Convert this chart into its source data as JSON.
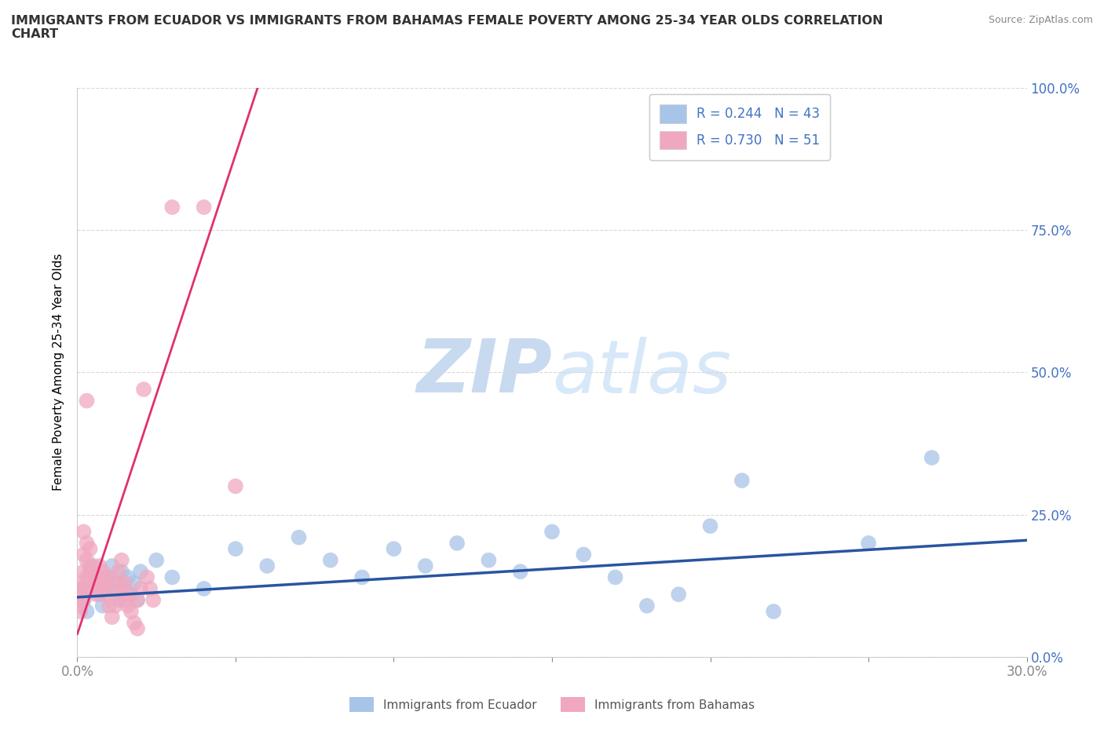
{
  "title": "IMMIGRANTS FROM ECUADOR VS IMMIGRANTS FROM BAHAMAS FEMALE POVERTY AMONG 25-34 YEAR OLDS CORRELATION\nCHART",
  "source": "Source: ZipAtlas.com",
  "ylabel": "Female Poverty Among 25-34 Year Olds",
  "xlim": [
    0.0,
    0.3
  ],
  "ylim": [
    0.0,
    1.0
  ],
  "xticks": [
    0.0,
    0.05,
    0.1,
    0.15,
    0.2,
    0.25,
    0.3
  ],
  "xtick_labels": [
    "0.0%",
    "",
    "",
    "",
    "",
    "",
    "30.0%"
  ],
  "ytick_labels": [
    "0.0%",
    "25.0%",
    "50.0%",
    "75.0%",
    "100.0%"
  ],
  "yticks": [
    0.0,
    0.25,
    0.5,
    0.75,
    1.0
  ],
  "ecuador_color": "#a8c4e8",
  "bahamas_color": "#f0a8c0",
  "ecuador_line_color": "#2855a0",
  "bahamas_line_color": "#e03070",
  "ecuador_R": 0.244,
  "ecuador_N": 43,
  "bahamas_R": 0.73,
  "bahamas_N": 51,
  "legend_color": "#4472c4",
  "watermark_zip": "ZIP",
  "watermark_atlas": "atlas",
  "watermark_color": "#c8daf0",
  "grid_color": "#d8d8d8",
  "ecuador_scatter": [
    [
      0.001,
      0.12
    ],
    [
      0.002,
      0.1
    ],
    [
      0.003,
      0.08
    ],
    [
      0.004,
      0.15
    ],
    [
      0.005,
      0.16
    ],
    [
      0.006,
      0.13
    ],
    [
      0.007,
      0.11
    ],
    [
      0.008,
      0.09
    ],
    [
      0.009,
      0.14
    ],
    [
      0.01,
      0.12
    ],
    [
      0.011,
      0.16
    ],
    [
      0.012,
      0.13
    ],
    [
      0.013,
      0.1
    ],
    [
      0.014,
      0.15
    ],
    [
      0.015,
      0.12
    ],
    [
      0.016,
      0.14
    ],
    [
      0.017,
      0.11
    ],
    [
      0.018,
      0.13
    ],
    [
      0.019,
      0.1
    ],
    [
      0.02,
      0.15
    ],
    [
      0.025,
      0.17
    ],
    [
      0.03,
      0.14
    ],
    [
      0.04,
      0.12
    ],
    [
      0.05,
      0.19
    ],
    [
      0.06,
      0.16
    ],
    [
      0.07,
      0.21
    ],
    [
      0.08,
      0.17
    ],
    [
      0.09,
      0.14
    ],
    [
      0.1,
      0.19
    ],
    [
      0.11,
      0.16
    ],
    [
      0.12,
      0.2
    ],
    [
      0.13,
      0.17
    ],
    [
      0.14,
      0.15
    ],
    [
      0.15,
      0.22
    ],
    [
      0.16,
      0.18
    ],
    [
      0.17,
      0.14
    ],
    [
      0.18,
      0.09
    ],
    [
      0.19,
      0.11
    ],
    [
      0.2,
      0.23
    ],
    [
      0.21,
      0.31
    ],
    [
      0.22,
      0.08
    ],
    [
      0.25,
      0.2
    ],
    [
      0.27,
      0.35
    ]
  ],
  "bahamas_scatter": [
    [
      0.001,
      0.08
    ],
    [
      0.001,
      0.11
    ],
    [
      0.001,
      0.13
    ],
    [
      0.001,
      0.09
    ],
    [
      0.002,
      0.12
    ],
    [
      0.002,
      0.15
    ],
    [
      0.002,
      0.18
    ],
    [
      0.002,
      0.22
    ],
    [
      0.002,
      0.1
    ],
    [
      0.003,
      0.14
    ],
    [
      0.003,
      0.17
    ],
    [
      0.003,
      0.2
    ],
    [
      0.003,
      0.45
    ],
    [
      0.004,
      0.13
    ],
    [
      0.004,
      0.16
    ],
    [
      0.004,
      0.19
    ],
    [
      0.005,
      0.12
    ],
    [
      0.005,
      0.15
    ],
    [
      0.006,
      0.11
    ],
    [
      0.006,
      0.14
    ],
    [
      0.007,
      0.13
    ],
    [
      0.007,
      0.16
    ],
    [
      0.008,
      0.12
    ],
    [
      0.008,
      0.15
    ],
    [
      0.009,
      0.11
    ],
    [
      0.009,
      0.13
    ],
    [
      0.01,
      0.14
    ],
    [
      0.01,
      0.09
    ],
    [
      0.011,
      0.07
    ],
    [
      0.012,
      0.09
    ],
    [
      0.012,
      0.11
    ],
    [
      0.013,
      0.13
    ],
    [
      0.013,
      0.15
    ],
    [
      0.014,
      0.12
    ],
    [
      0.014,
      0.17
    ],
    [
      0.015,
      0.1
    ],
    [
      0.015,
      0.13
    ],
    [
      0.016,
      0.11
    ],
    [
      0.016,
      0.09
    ],
    [
      0.017,
      0.08
    ],
    [
      0.018,
      0.06
    ],
    [
      0.019,
      0.05
    ],
    [
      0.019,
      0.1
    ],
    [
      0.02,
      0.12
    ],
    [
      0.021,
      0.47
    ],
    [
      0.022,
      0.14
    ],
    [
      0.023,
      0.12
    ],
    [
      0.024,
      0.1
    ],
    [
      0.03,
      0.79
    ],
    [
      0.04,
      0.79
    ],
    [
      0.05,
      0.3
    ]
  ],
  "ecuador_trendline_solid": [
    [
      0.0,
      0.105
    ],
    [
      0.3,
      0.205
    ]
  ],
  "bahamas_trendline_solid": [
    [
      0.0,
      0.04
    ],
    [
      0.057,
      1.0
    ]
  ],
  "bahamas_trendline_dashed": [
    [
      0.057,
      1.0
    ],
    [
      0.075,
      1.2
    ]
  ]
}
